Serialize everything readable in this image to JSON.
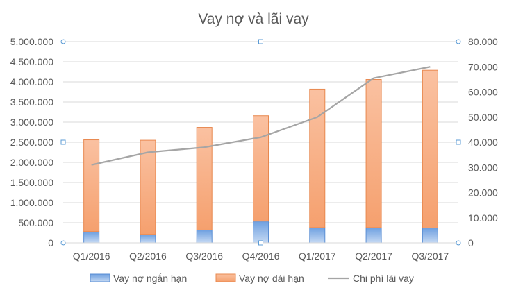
{
  "chart_data": {
    "type": "bar",
    "title": "Vay nợ và lãi vay",
    "categories": [
      "Q1/2016",
      "Q2/2016",
      "Q3/2016",
      "Q4/2016",
      "Q1/2017",
      "Q2/2017",
      "Q3/2017"
    ],
    "series": [
      {
        "name": "Vay nợ ngắn hạn",
        "type": "bar",
        "stack": "debt",
        "axis": "left",
        "values": [
          280000,
          210000,
          320000,
          540000,
          380000,
          380000,
          370000
        ]
      },
      {
        "name": "Vay nợ dài hạn",
        "type": "bar",
        "stack": "debt",
        "axis": "left",
        "values": [
          2280000,
          2340000,
          2550000,
          2620000,
          3440000,
          3680000,
          3920000
        ]
      },
      {
        "name": "Chi phí lãi vay",
        "type": "line",
        "axis": "right",
        "values": [
          31000,
          36000,
          38000,
          42000,
          50000,
          65500,
          70000
        ]
      }
    ],
    "y_left": {
      "ylim": [
        0,
        5000000
      ],
      "ticks": [
        "0",
        "500.000",
        "1.000.000",
        "1.500.000",
        "2.000.000",
        "2.500.000",
        "3.000.000",
        "3.500.000",
        "4.000.000",
        "4.500.000",
        "5.000.000"
      ]
    },
    "y_right": {
      "ylim": [
        0,
        80000
      ],
      "ticks": [
        "0",
        "10.000",
        "20.000",
        "30.000",
        "40.000",
        "50.000",
        "60.000",
        "70.000",
        "80.000"
      ]
    },
    "grid": true,
    "legend_position": "bottom",
    "colors": {
      "short_fill_top": "#6d9fe0",
      "short_fill_bottom": "#c5d9f3",
      "short_stroke": "#5b8fd4",
      "long_fill_top": "#fac1a1",
      "long_fill_bottom": "#f5a06e",
      "long_stroke": "#e8884f",
      "line": "#a5a5a5",
      "grid": "#d9d9d9",
      "text": "#595959",
      "title": "#595959",
      "handle": "#5b9bd5"
    }
  }
}
